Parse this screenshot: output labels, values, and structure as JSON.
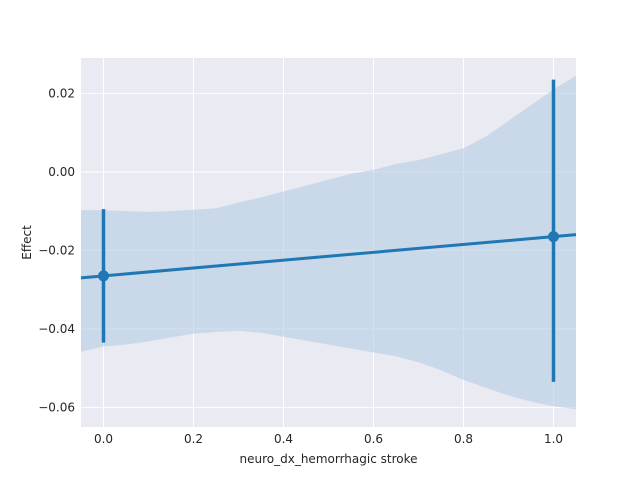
{
  "chart_data": {
    "type": "scatter",
    "title": "",
    "xlabel": "neuro_dx_hemorrhagic stroke",
    "ylabel": "Effect",
    "xlim": [
      -0.05,
      1.05
    ],
    "ylim": [
      -0.065,
      0.029
    ],
    "x_ticks": [
      0.0,
      0.2,
      0.4,
      0.6,
      0.8,
      1.0
    ],
    "x_tick_labels": [
      "0.0",
      "0.2",
      "0.4",
      "0.6",
      "0.8",
      "1.0"
    ],
    "y_ticks": [
      0.02,
      0.0,
      -0.02,
      -0.04,
      -0.06
    ],
    "y_tick_labels": [
      "0.02",
      "0.00",
      "−0.02",
      "−0.04",
      "−0.06"
    ],
    "grid": true,
    "points": [
      {
        "x": 0.0,
        "y": -0.0265,
        "ci_low": -0.0435,
        "ci_high": -0.0095
      },
      {
        "x": 1.0,
        "y": -0.0165,
        "ci_low": -0.0535,
        "ci_high": 0.0235
      }
    ],
    "regression_line": {
      "slope": 0.01,
      "intercept": -0.0265
    },
    "confidence_band": {
      "x": [
        -0.05,
        0.0,
        0.05,
        0.1,
        0.15,
        0.2,
        0.25,
        0.3,
        0.35,
        0.4,
        0.45,
        0.5,
        0.55,
        0.6,
        0.65,
        0.7,
        0.75,
        0.8,
        0.85,
        0.9,
        0.95,
        1.0,
        1.05
      ],
      "upper": [
        -0.0098,
        -0.0098,
        -0.01,
        -0.0102,
        -0.01,
        -0.0097,
        -0.0093,
        -0.0078,
        -0.0065,
        -0.005,
        -0.0035,
        -0.002,
        -0.0005,
        0.0005,
        0.002,
        0.003,
        0.0045,
        0.006,
        0.009,
        0.013,
        0.017,
        0.021,
        0.0245
      ],
      "lower": [
        -0.0458,
        -0.0445,
        -0.044,
        -0.0432,
        -0.0422,
        -0.0412,
        -0.0408,
        -0.0405,
        -0.041,
        -0.042,
        -0.043,
        -0.044,
        -0.045,
        -0.046,
        -0.047,
        -0.0485,
        -0.0505,
        -0.053,
        -0.055,
        -0.057,
        -0.0585,
        -0.0597,
        -0.0605
      ]
    },
    "colors": {
      "line": "#1f77b4",
      "band": "#b3cde3",
      "background": "#eaeaf2",
      "grid": "#ffffff"
    }
  }
}
